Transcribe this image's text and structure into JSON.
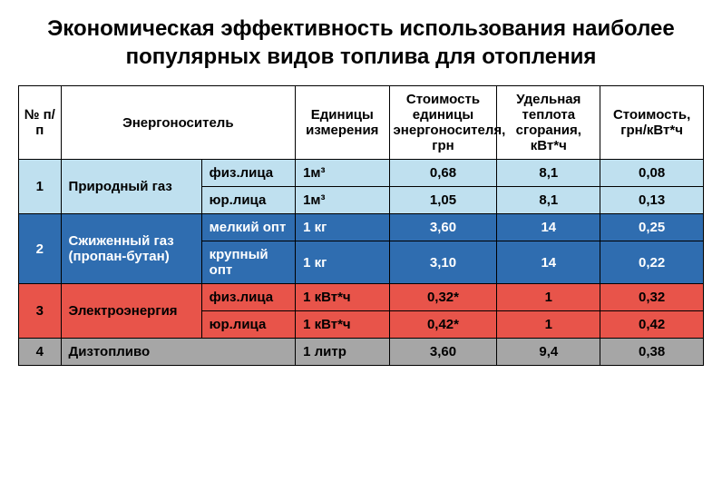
{
  "title": "Экономическая эффективность использования наиболее популярных видов топлива для отопления",
  "headers": {
    "num": "№ п/п",
    "carrier": "Энергоноситель",
    "unit": "Единицы измерения",
    "cost_unit": "Стоимость единицы энергоносителя, грн",
    "heat": "Удельная теплота сгорания, кВт*ч",
    "cost_kwh": "Стоимость, грн/кВт*ч"
  },
  "colors": {
    "header_bg": "#ffffff",
    "group1_bg": "#bfe0ef",
    "group2_bg": "#2f6db0",
    "group3_bg": "#e8544a",
    "group4_bg": "#a6a6a6",
    "text_dark": "#000000",
    "text_light": "#ffffff"
  },
  "rows": [
    {
      "num": "1",
      "carrier": "Природный газ",
      "group_bg": "group1_bg",
      "text_color": "text_dark",
      "sub": [
        {
          "label": "физ.лица",
          "unit": "1м³",
          "cost_unit": "0,68",
          "heat": "8,1",
          "cost_kwh": "0,08"
        },
        {
          "label": "юр.лица",
          "unit": "1м³",
          "cost_unit": "1,05",
          "heat": "8,1",
          "cost_kwh": "0,13"
        }
      ]
    },
    {
      "num": "2",
      "carrier": "Сжиженный газ (пропан-бутан)",
      "group_bg": "group2_bg",
      "text_color": "text_light",
      "sub": [
        {
          "label": "мелкий опт",
          "unit": "1 кг",
          "cost_unit": "3,60",
          "heat": "14",
          "cost_kwh": "0,25"
        },
        {
          "label": "крупный опт",
          "unit": "1 кг",
          "cost_unit": "3,10",
          "heat": "14",
          "cost_kwh": "0,22"
        }
      ]
    },
    {
      "num": "3",
      "carrier": "Электроэнергия",
      "group_bg": "group3_bg",
      "text_color": "text_dark",
      "sub": [
        {
          "label": "физ.лица",
          "unit": "1 кВт*ч",
          "cost_unit": "0,32*",
          "heat": "1",
          "cost_kwh": "0,32"
        },
        {
          "label": "юр.лица",
          "unit": "1 кВт*ч",
          "cost_unit": "0,42*",
          "heat": "1",
          "cost_kwh": "0,42"
        }
      ]
    },
    {
      "num": "4",
      "carrier": "Дизтопливо",
      "group_bg": "group4_bg",
      "text_color": "text_dark",
      "sub": [
        {
          "label": "",
          "unit": "1 литр",
          "cost_unit": "3,60",
          "heat": "9,4",
          "cost_kwh": "0,38"
        }
      ]
    }
  ]
}
